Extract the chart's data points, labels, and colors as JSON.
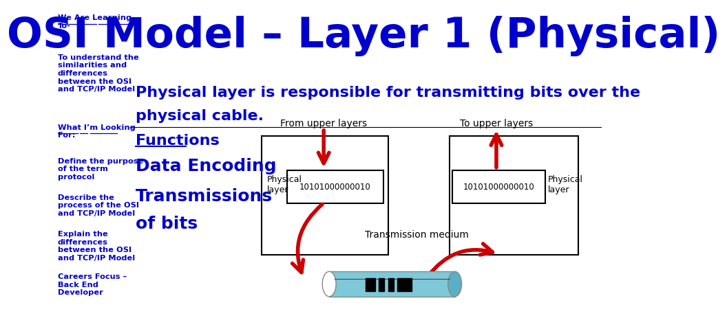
{
  "title": "OSI Model – Layer 1 (Physical)",
  "title_color": "#0000CC",
  "title_fontsize": 44,
  "subtitle_line1": "Physical layer is responsible for transmitting bits over the",
  "subtitle_line2": "physical cable.",
  "subtitle_color": "#0000CC",
  "subtitle_fontsize": 16,
  "left_title1": "We Are Learning\nTo-",
  "left_text1": "To understand the\nsimilarities and\ndifferences\nbetween the OSI\nand TCP/IP Model",
  "left_title2": "What I’m Looking\nFor:",
  "left_text2": "Define the purpose\nof the term\nprotocol",
  "left_text3": "Describe the\nprocess of the OSI\nand TCP/IP Model",
  "left_text4": "Explain the\ndifferences\nbetween the OSI\nand TCP/IP Model",
  "left_text5": "Careers Focus –\nBack End\nDeveloper",
  "functions_label": "Functions",
  "func1": "Data Encoding",
  "func2": "Transmissions",
  "func3": "of bits",
  "diagram_label_from": "From upper layers",
  "diagram_label_to": "To upper layers",
  "diagram_bits": "10101000000010",
  "diagram_medium": "Transmission medium",
  "physical_layer_label": "Physical\nlayer",
  "blue_color": "#0000CC",
  "red_color": "#CC0000",
  "background": "#FFFFFF"
}
